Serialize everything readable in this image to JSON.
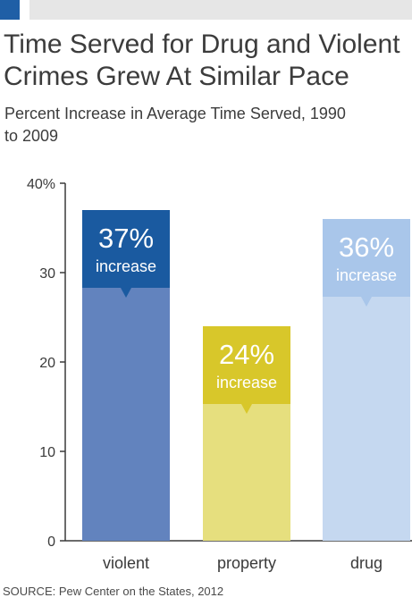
{
  "header": {
    "accent_color": "#1f5fa6",
    "stripe_color": "#e6e6e6",
    "title": "Time Served for Drug and Violent Crimes Grew At Similar Pace",
    "subtitle": "Percent Increase in Average Time Served, 1990 to 2009"
  },
  "chart_data": {
    "type": "bar",
    "title": "Time Served for Drug and Violent Crimes Grew At Similar Pace",
    "subtitle": "Percent Increase in Average Time Served, 1990 to 2009",
    "xlabel": "",
    "ylabel": "",
    "categories": [
      "violent",
      "property",
      "drug"
    ],
    "values": [
      37,
      24,
      36
    ],
    "ylim": [
      0,
      40
    ],
    "yticks": [
      0,
      10,
      20,
      30,
      40
    ],
    "ytick_labels": [
      "0",
      "10",
      "20",
      "30",
      "40%"
    ],
    "grid": false,
    "bar_colors": [
      "#6283be",
      "#e6df7e",
      "#c5d8f0"
    ],
    "callout_colors": [
      "#1a5aa0",
      "#d8c72a",
      "#a9c6ea"
    ],
    "annotations": [
      {
        "value_label": "37%",
        "text": "increase"
      },
      {
        "value_label": "24%",
        "text": "increase"
      },
      {
        "value_label": "36%",
        "text": "increase"
      }
    ]
  },
  "footer": {
    "source": "SOURCE: Pew Center on the States, 2012"
  }
}
